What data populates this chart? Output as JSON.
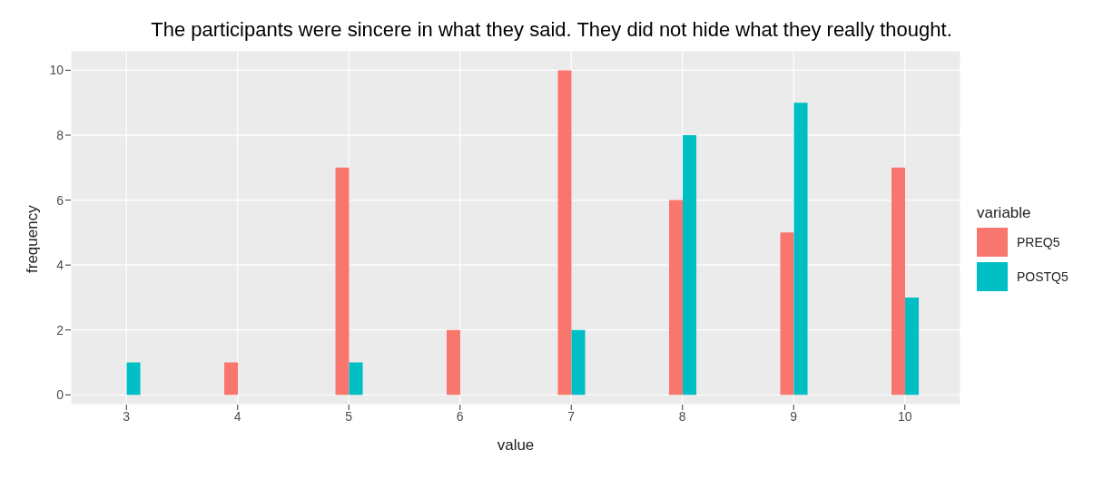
{
  "chart_data": {
    "type": "bar",
    "title": "The participants were sincere in what they said. They did not hide what they really thought.",
    "xlabel": "value",
    "ylabel": "frequency",
    "legend_title": "variable",
    "categories": [
      "3",
      "4",
      "5",
      "6",
      "7",
      "8",
      "9",
      "10"
    ],
    "series": [
      {
        "name": "PREQ5",
        "color": "#f8766d",
        "values": [
          null,
          1,
          7,
          2,
          10,
          6,
          5,
          7
        ]
      },
      {
        "name": "POSTQ5",
        "color": "#00bfc4",
        "values": [
          1,
          null,
          1,
          null,
          2,
          8,
          9,
          3
        ]
      }
    ],
    "ylim": [
      -0.3,
      10.6
    ],
    "yticks": [
      0,
      2,
      4,
      6,
      8,
      10
    ],
    "grid": true,
    "legend": "right"
  }
}
